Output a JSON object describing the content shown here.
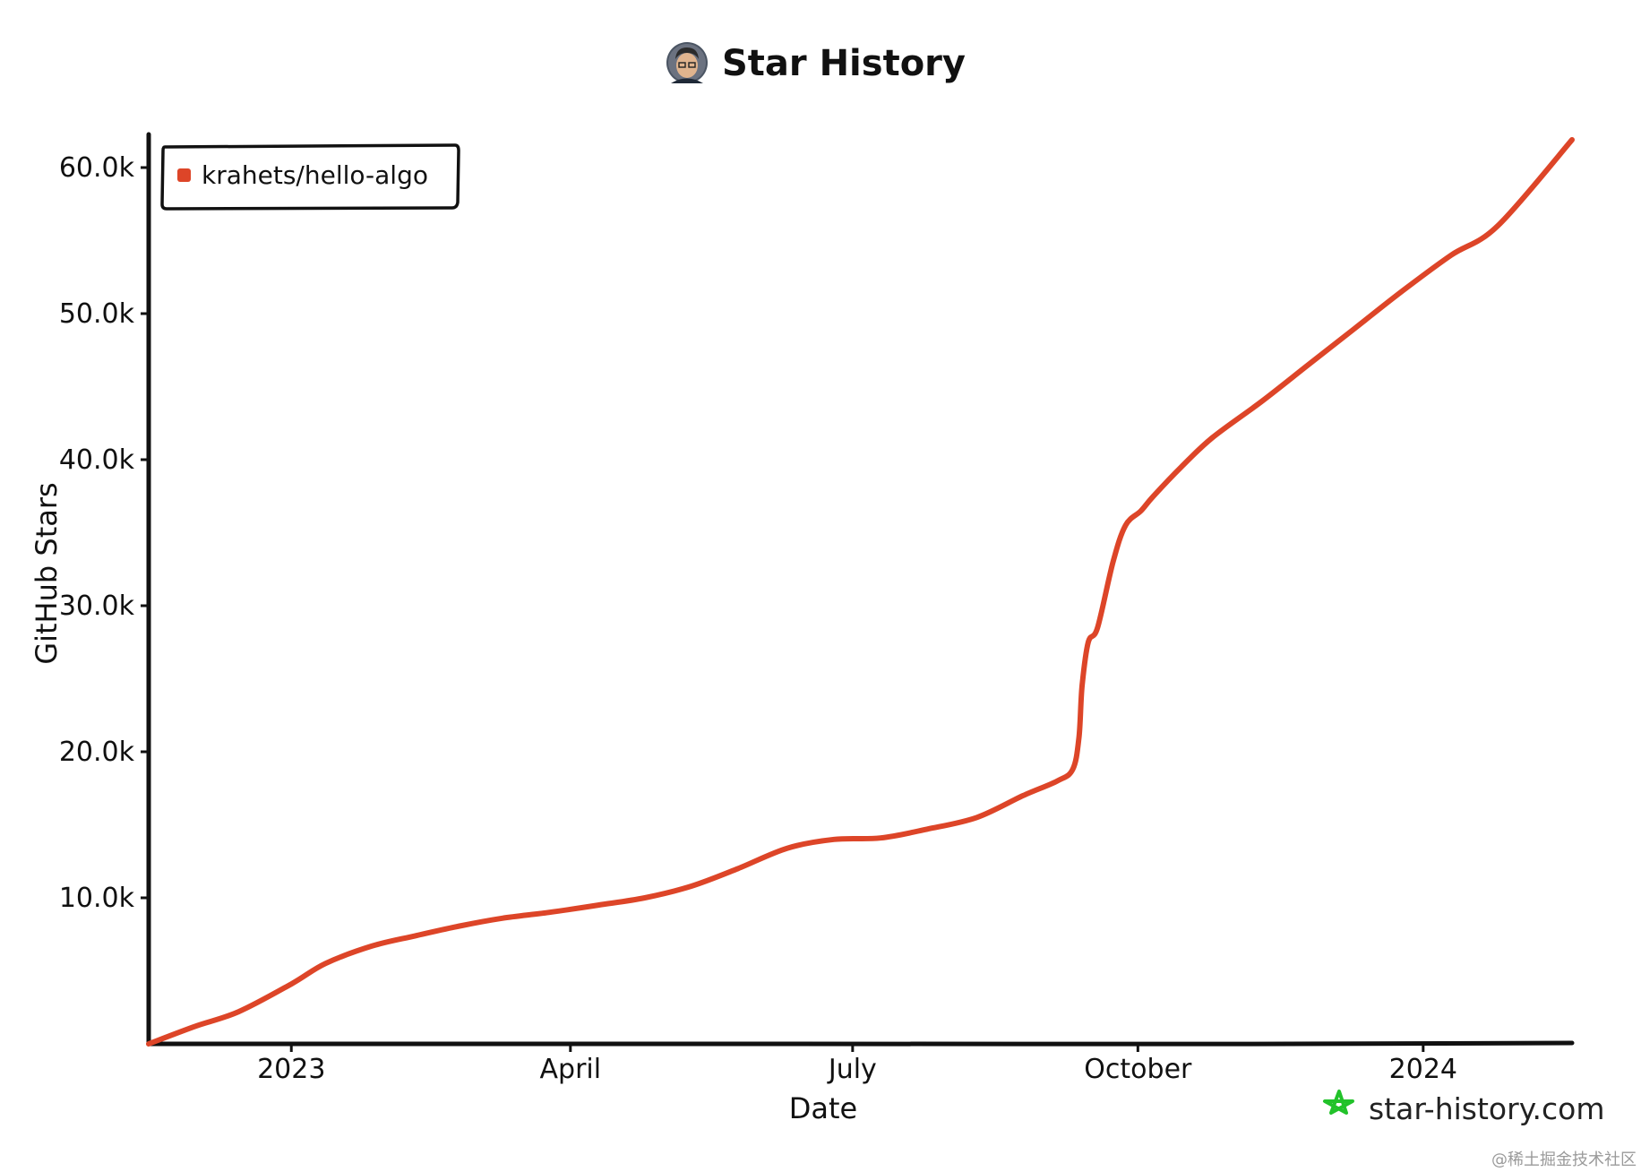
{
  "chart_data": {
    "type": "line",
    "title": "Star History",
    "xlabel": "Date",
    "ylabel": "GitHub Stars",
    "x_tick_labels": [
      "2023",
      "April",
      "July",
      "October",
      "2024"
    ],
    "y_tick_labels": [
      "10.0k",
      "20.0k",
      "30.0k",
      "40.0k",
      "50.0k",
      "60.0k"
    ],
    "y_ticks": [
      10000,
      20000,
      30000,
      40000,
      50000,
      60000
    ],
    "x_tick_dates": [
      "2023-01-01",
      "2023-04-01",
      "2023-07-01",
      "2023-10-01",
      "2024-01-01"
    ],
    "xlim": [
      "2022-11-16",
      "2024-02-18"
    ],
    "ylim": [
      0,
      62000
    ],
    "grid": false,
    "legend_position": "top-left",
    "series": [
      {
        "name": "krahets/hello-algo",
        "color": "#dd4528",
        "x": [
          "2022-11-16",
          "2022-12-01",
          "2022-12-15",
          "2023-01-01",
          "2023-01-12",
          "2023-01-27",
          "2023-02-10",
          "2023-02-25",
          "2023-03-10",
          "2023-03-25",
          "2023-04-10",
          "2023-04-25",
          "2023-05-10",
          "2023-05-25",
          "2023-06-10",
          "2023-06-25",
          "2023-07-10",
          "2023-07-25",
          "2023-08-10",
          "2023-08-25",
          "2023-09-05",
          "2023-09-10",
          "2023-09-12",
          "2023-09-13",
          "2023-09-15",
          "2023-09-18",
          "2023-09-23",
          "2023-09-27",
          "2023-10-02",
          "2023-10-06",
          "2023-10-15",
          "2023-10-25",
          "2023-11-10",
          "2023-11-25",
          "2023-12-10",
          "2023-12-25",
          "2024-01-10",
          "2024-01-25",
          "2024-02-18"
        ],
        "values": [
          0,
          1200,
          2200,
          4100,
          5500,
          6700,
          7400,
          8100,
          8600,
          9000,
          9500,
          10000,
          10800,
          12000,
          13400,
          14000,
          14100,
          14700,
          15500,
          17000,
          18000,
          18800,
          21000,
          24500,
          27500,
          28500,
          33000,
          35500,
          36500,
          37500,
          39500,
          41500,
          44000,
          46500,
          49000,
          51500,
          54000,
          56000,
          61900
        ]
      }
    ]
  },
  "brand": {
    "text": "star-history.com",
    "icon": "star-outline-icon",
    "color": "#22c22a"
  },
  "avatar": {
    "icon": "avatar-icon"
  },
  "watermark": {
    "text": "@稀土掘金技术社区"
  }
}
